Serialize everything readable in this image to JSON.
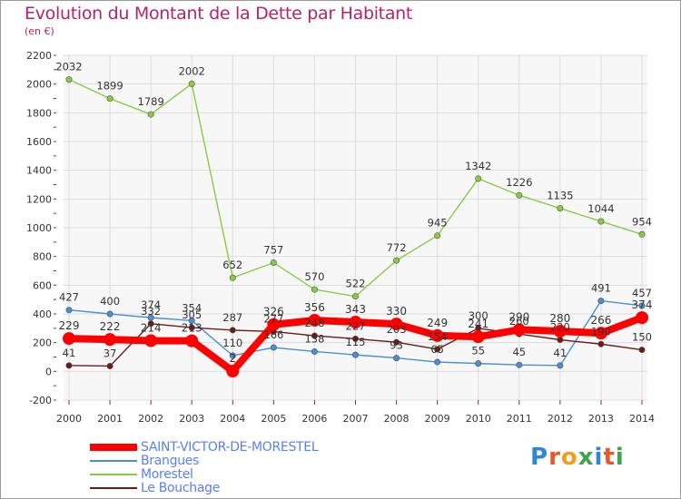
{
  "title": "Evolution du Montant de la Dette par Habitant",
  "unit_label": "(en €)",
  "logo": {
    "text": "Proxiti",
    "colors": [
      "#2f86d6",
      "#e8572b",
      "#f0a020",
      "#3fa34d",
      "#2f86d6",
      "#e8572b",
      "#3fa34d"
    ]
  },
  "chart_data": {
    "type": "line",
    "title": "Evolution du Montant de la Dette par Habitant",
    "ylabel": "(en €)",
    "x": [
      "2000",
      "2001",
      "2002",
      "2003",
      "2004",
      "2005",
      "2006",
      "2007",
      "2008",
      "2009",
      "2010",
      "2011",
      "2012",
      "2013",
      "2014"
    ],
    "ylim": [
      -200,
      2200
    ],
    "yticks": [
      -200,
      0,
      200,
      400,
      600,
      800,
      1000,
      1200,
      1400,
      1600,
      1800,
      2000,
      2200
    ],
    "grid": true,
    "legend_position": "bottom-left",
    "series": [
      {
        "name": "SAINT-VICTOR-DE-MORESTEL",
        "color": "#ff0000",
        "emphasis": true,
        "values": [
          229,
          222,
          214,
          213,
          2,
          326,
          356,
          343,
          330,
          249,
          241,
          290,
          280,
          266,
          374
        ],
        "labels": [
          "229",
          "222",
          "214",
          "213",
          "2",
          "326",
          "356",
          "343",
          "330",
          "249",
          "241",
          "290",
          "280",
          "266",
          "374"
        ]
      },
      {
        "name": "Brangues",
        "color": "#4a90d0",
        "values": [
          427,
          400,
          374,
          354,
          110,
          166,
          138,
          115,
          93,
          65,
          55,
          45,
          41,
          491,
          457
        ],
        "labels": [
          "427",
          "400",
          "374",
          "354",
          "110",
          "166",
          "138",
          "115",
          "93",
          "65",
          "55",
          "45",
          "41",
          "491",
          "457"
        ]
      },
      {
        "name": "Morestel",
        "color": "#88cc44",
        "values": [
          2032,
          1899,
          1789,
          2002,
          652,
          757,
          570,
          522,
          772,
          945,
          1342,
          1226,
          1135,
          1044,
          954
        ],
        "labels": [
          "2032",
          "1899",
          "1789",
          "2002",
          "652",
          "757",
          "570",
          "522",
          "772",
          "945",
          "1342",
          "1226",
          "1135",
          "1044",
          "954"
        ]
      },
      {
        "name": "Le Bouchage",
        "color": "#6b1a1a",
        "values": [
          41,
          37,
          332,
          305,
          287,
          277,
          248,
          227,
          203,
          154,
          300,
          260,
          220,
          190,
          150
        ],
        "labels": [
          "41",
          "37",
          "332",
          "305",
          "287",
          "277",
          "248",
          "227",
          "203",
          "154",
          "300",
          "260",
          "220",
          "190",
          "150"
        ]
      }
    ]
  }
}
